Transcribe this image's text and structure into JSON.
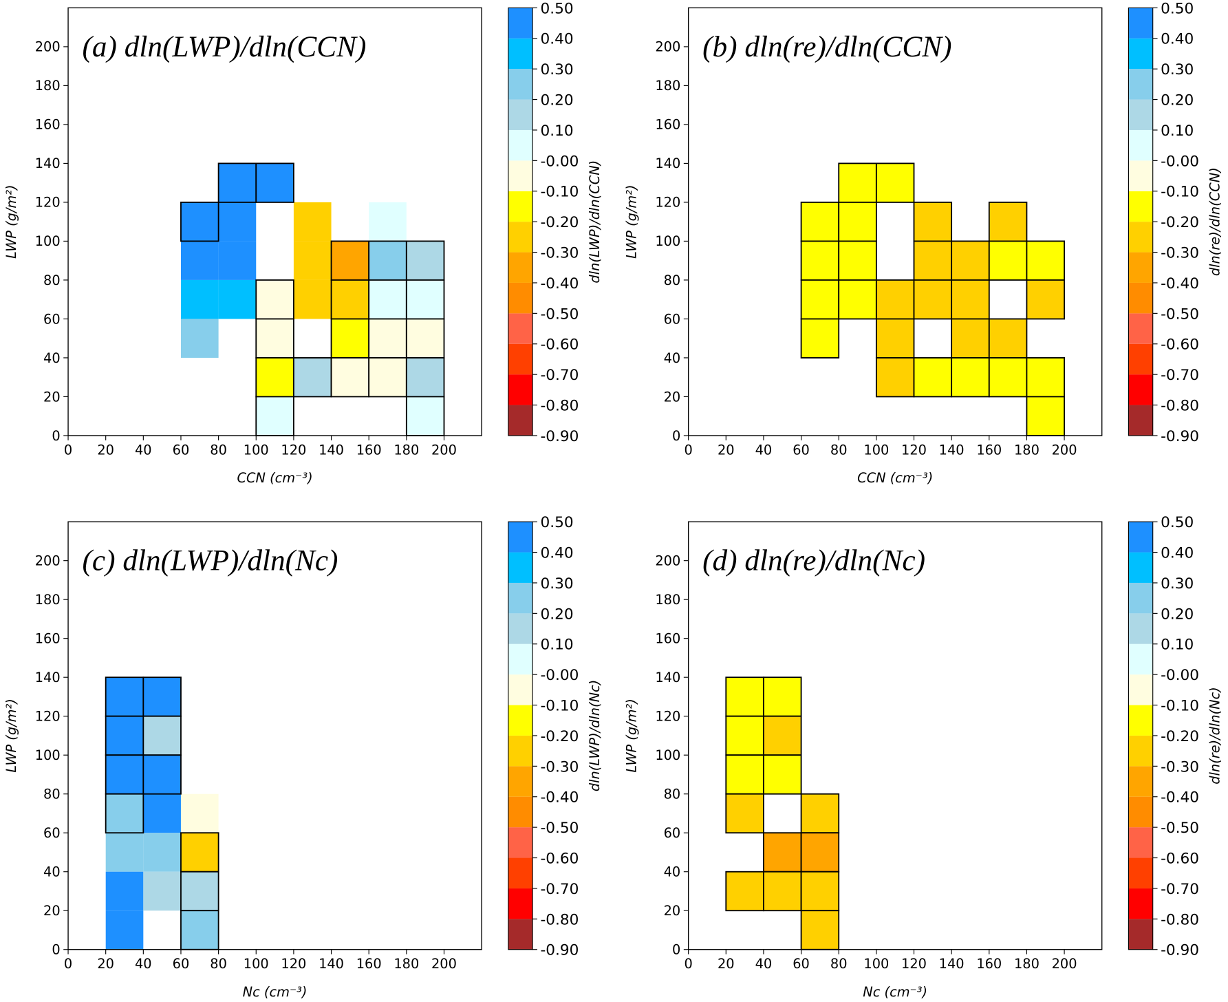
{
  "colorbar": {
    "ticks": [
      {
        "value": -0.9,
        "label": "-0.90"
      },
      {
        "value": -0.8,
        "label": "-0.80"
      },
      {
        "value": -0.7,
        "label": "-0.70"
      },
      {
        "value": -0.6,
        "label": "-0.60"
      },
      {
        "value": -0.5,
        "label": "-0.50"
      },
      {
        "value": -0.4,
        "label": "-0.40"
      },
      {
        "value": -0.3,
        "label": "-0.30"
      },
      {
        "value": -0.2,
        "label": "-0.20"
      },
      {
        "value": -0.1,
        "label": "-0.10"
      },
      {
        "value": 0,
        "label": "-0.00"
      },
      {
        "value": 0.1,
        "label": "0.10"
      },
      {
        "value": 0.2,
        "label": "0.20"
      },
      {
        "value": 0.3,
        "label": "0.30"
      },
      {
        "value": 0.4,
        "label": "0.40"
      },
      {
        "value": 0.5,
        "label": "0.50"
      }
    ],
    "colors": [
      "#a52a2a",
      "#ff0000",
      "#ff4000",
      "#ff6347",
      "#ff8c00",
      "#ffa500",
      "#ffd000",
      "#ffff00",
      "#fffde0",
      "#e0ffff",
      "#add8e6",
      "#87ceeb",
      "#00bfff",
      "#1e90ff"
    ]
  },
  "chart_data": [
    {
      "type": "heatmap",
      "title": "(a) dln(LWP)/dln(CCN)",
      "x_label": "CCN (cm⁻³)",
      "y_label": "LWP (g/m²)",
      "colorbar_label": "dln(LWP)/dln(CCN)",
      "xlim": [
        0,
        220
      ],
      "xticks": [
        0,
        20,
        40,
        60,
        80,
        100,
        120,
        140,
        160,
        180,
        200
      ],
      "ylim": [
        0,
        220
      ],
      "yticks": [
        0,
        20,
        40,
        60,
        80,
        100,
        120,
        140,
        160,
        180,
        200
      ],
      "cells": [
        [
          80,
          120,
          0.45,
          true
        ],
        [
          100,
          120,
          0.45,
          true
        ],
        [
          60,
          100,
          0.45,
          true
        ],
        [
          80,
          100,
          0.45,
          false
        ],
        [
          120,
          100,
          -0.25,
          false
        ],
        [
          160,
          100,
          0.05,
          false
        ],
        [
          60,
          80,
          0.45,
          false
        ],
        [
          80,
          80,
          0.45,
          false
        ],
        [
          120,
          80,
          -0.25,
          false
        ],
        [
          140,
          80,
          -0.35,
          true
        ],
        [
          160,
          80,
          0.25,
          true
        ],
        [
          180,
          80,
          0.15,
          true
        ],
        [
          60,
          60,
          0.35,
          false
        ],
        [
          80,
          60,
          0.35,
          false
        ],
        [
          100,
          60,
          -0.05,
          true
        ],
        [
          120,
          60,
          -0.25,
          false
        ],
        [
          140,
          60,
          -0.25,
          true
        ],
        [
          160,
          60,
          0.05,
          true
        ],
        [
          180,
          60,
          0.05,
          true
        ],
        [
          60,
          40,
          0.25,
          false
        ],
        [
          100,
          40,
          -0.05,
          true
        ],
        [
          140,
          40,
          -0.15,
          true
        ],
        [
          160,
          40,
          -0.05,
          true
        ],
        [
          180,
          40,
          -0.05,
          true
        ],
        [
          100,
          20,
          -0.15,
          true
        ],
        [
          120,
          20,
          0.15,
          true
        ],
        [
          140,
          20,
          -0.05,
          true
        ],
        [
          160,
          20,
          -0.05,
          true
        ],
        [
          180,
          20,
          0.15,
          true
        ],
        [
          100,
          0,
          0.05,
          true
        ],
        [
          180,
          0,
          0.05,
          true
        ]
      ]
    },
    {
      "type": "heatmap",
      "title": "(b) dln(re)/dln(CCN)",
      "x_label": "CCN (cm⁻³)",
      "y_label": "LWP (g/m²)",
      "colorbar_label": "dln(re)/dln(CCN)",
      "xlim": [
        0,
        220
      ],
      "xticks": [
        0,
        20,
        40,
        60,
        80,
        100,
        120,
        140,
        160,
        180,
        200
      ],
      "ylim": [
        0,
        220
      ],
      "yticks": [
        0,
        20,
        40,
        60,
        80,
        100,
        120,
        140,
        160,
        180,
        200
      ],
      "cells": [
        [
          80,
          120,
          -0.15,
          true
        ],
        [
          100,
          120,
          -0.15,
          true
        ],
        [
          60,
          100,
          -0.15,
          true
        ],
        [
          80,
          100,
          -0.15,
          true
        ],
        [
          120,
          100,
          -0.25,
          true
        ],
        [
          160,
          100,
          -0.25,
          true
        ],
        [
          60,
          80,
          -0.15,
          true
        ],
        [
          80,
          80,
          -0.15,
          true
        ],
        [
          120,
          80,
          -0.25,
          true
        ],
        [
          140,
          80,
          -0.25,
          true
        ],
        [
          160,
          80,
          -0.15,
          true
        ],
        [
          180,
          80,
          -0.15,
          true
        ],
        [
          60,
          60,
          -0.15,
          true
        ],
        [
          80,
          60,
          -0.15,
          true
        ],
        [
          100,
          60,
          -0.25,
          true
        ],
        [
          120,
          60,
          -0.25,
          true
        ],
        [
          140,
          60,
          -0.25,
          true
        ],
        [
          180,
          60,
          -0.25,
          true
        ],
        [
          60,
          40,
          -0.15,
          true
        ],
        [
          100,
          40,
          -0.25,
          true
        ],
        [
          140,
          40,
          -0.25,
          true
        ],
        [
          160,
          40,
          -0.25,
          true
        ],
        [
          100,
          20,
          -0.25,
          true
        ],
        [
          120,
          20,
          -0.15,
          true
        ],
        [
          140,
          20,
          -0.15,
          true
        ],
        [
          160,
          20,
          -0.15,
          true
        ],
        [
          180,
          20,
          -0.15,
          true
        ],
        [
          180,
          0,
          -0.15,
          true
        ]
      ]
    },
    {
      "type": "heatmap",
      "title": "(c) dln(LWP)/dln(Nc)",
      "x_label": "Nc (cm⁻³)",
      "y_label": "LWP (g/m²)",
      "colorbar_label": "dln(LWP)/dln(Nc)",
      "xlim": [
        0,
        220
      ],
      "xticks": [
        0,
        20,
        40,
        60,
        80,
        100,
        120,
        140,
        160,
        180,
        200
      ],
      "ylim": [
        0,
        220
      ],
      "yticks": [
        0,
        20,
        40,
        60,
        80,
        100,
        120,
        140,
        160,
        180,
        200
      ],
      "cells": [
        [
          20,
          120,
          0.45,
          true
        ],
        [
          40,
          120,
          0.45,
          true
        ],
        [
          20,
          100,
          0.45,
          true
        ],
        [
          40,
          100,
          0.15,
          true
        ],
        [
          20,
          80,
          0.45,
          true
        ],
        [
          40,
          80,
          0.45,
          true
        ],
        [
          20,
          60,
          0.25,
          true
        ],
        [
          40,
          60,
          0.45,
          false
        ],
        [
          60,
          60,
          -0.05,
          false
        ],
        [
          20,
          40,
          0.25,
          false
        ],
        [
          40,
          40,
          0.25,
          false
        ],
        [
          60,
          40,
          -0.25,
          true
        ],
        [
          20,
          20,
          0.45,
          false
        ],
        [
          40,
          20,
          0.15,
          false
        ],
        [
          60,
          20,
          0.15,
          true
        ],
        [
          20,
          0,
          0.45,
          false
        ],
        [
          60,
          0,
          0.25,
          true
        ]
      ]
    },
    {
      "type": "heatmap",
      "title": "(d) dln(re)/dln(Nc)",
      "x_label": "Nc (cm⁻³)",
      "y_label": "LWP (g/m²)",
      "colorbar_label": "dln(re)/dln(Nc)",
      "xlim": [
        0,
        220
      ],
      "xticks": [
        0,
        20,
        40,
        60,
        80,
        100,
        120,
        140,
        160,
        180,
        200
      ],
      "ylim": [
        0,
        220
      ],
      "yticks": [
        0,
        20,
        40,
        60,
        80,
        100,
        120,
        140,
        160,
        180,
        200
      ],
      "cells": [
        [
          20,
          120,
          -0.15,
          true
        ],
        [
          40,
          120,
          -0.15,
          true
        ],
        [
          20,
          100,
          -0.15,
          true
        ],
        [
          40,
          100,
          -0.25,
          true
        ],
        [
          20,
          80,
          -0.15,
          true
        ],
        [
          40,
          80,
          -0.15,
          true
        ],
        [
          20,
          60,
          -0.25,
          true
        ],
        [
          60,
          60,
          -0.25,
          true
        ],
        [
          40,
          40,
          -0.35,
          true
        ],
        [
          60,
          40,
          -0.35,
          true
        ],
        [
          20,
          20,
          -0.25,
          true
        ],
        [
          40,
          20,
          -0.25,
          true
        ],
        [
          60,
          20,
          -0.25,
          true
        ],
        [
          60,
          0,
          -0.25,
          true
        ]
      ]
    }
  ]
}
